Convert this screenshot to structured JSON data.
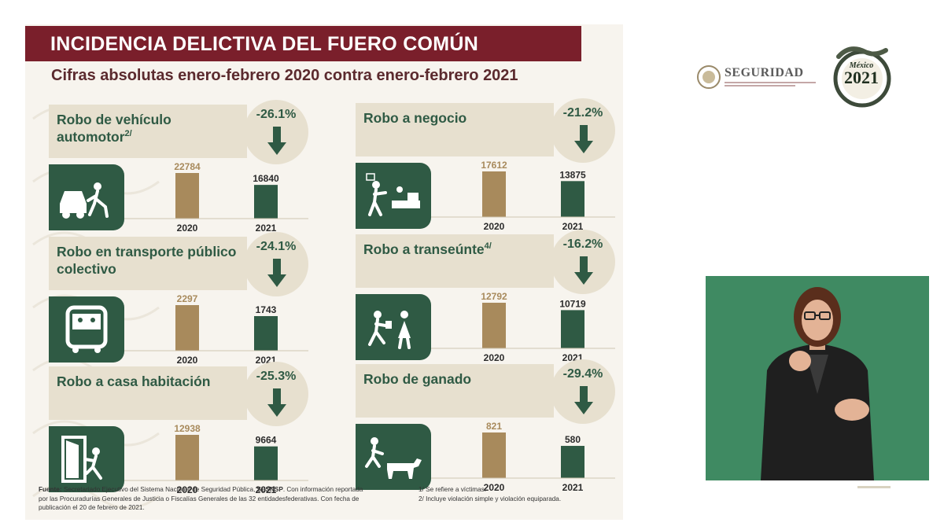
{
  "title": "INCIDENCIA DELICTIVA DEL FUERO COMÚN",
  "subtitle": "Cifras absolutas enero-febrero 2020 contra enero-febrero 2021",
  "colors": {
    "bar_2020": "#a88a5c",
    "bar_2021": "#2f5a44",
    "title_bar": "#7a1f2b",
    "banner": "#e7e0cf"
  },
  "panels": [
    {
      "title": "Robo de vehículo automotor",
      "note": "2/",
      "pct": "-26.1%",
      "icon": "car-robbery-icon",
      "year1": "2020",
      "year2": "2021"
    },
    {
      "title": "Robo a negocio",
      "note": "",
      "pct": "-21.2%",
      "icon": "store-robbery-icon",
      "year1": "2020",
      "year2": "2021"
    },
    {
      "title": "Robo en transporte público colectivo",
      "note": "",
      "pct": "-24.1%",
      "icon": "bus-robbery-icon",
      "year1": "2020",
      "year2": "2021"
    },
    {
      "title": "Robo a transeúnte",
      "note": "4/",
      "pct": "-16.2%",
      "icon": "pedestrian-robbery-icon",
      "year1": "2020",
      "year2": "2021"
    },
    {
      "title": "Robo a casa habitación",
      "note": "",
      "pct": "-25.3%",
      "icon": "house-robbery-icon",
      "year1": "2020",
      "year2": "2021"
    },
    {
      "title": "Robo de ganado",
      "note": "",
      "pct": "-29.4%",
      "icon": "cattle-robbery-icon",
      "year1": "2020",
      "year2": "2021"
    }
  ],
  "chart_data": [
    {
      "type": "bar",
      "title": "Robo de vehículo automotor",
      "categories": [
        "2020",
        "2021"
      ],
      "values": [
        22784,
        16840
      ],
      "value_labels": [
        "22784",
        "16840"
      ]
    },
    {
      "type": "bar",
      "title": "Robo a negocio",
      "categories": [
        "2020",
        "2021"
      ],
      "values": [
        17612,
        13875
      ],
      "value_labels": [
        "17612",
        "13875"
      ]
    },
    {
      "type": "bar",
      "title": "Robo en transporte público colectivo",
      "categories": [
        "2020",
        "2021"
      ],
      "values": [
        2297,
        1743
      ],
      "value_labels": [
        "2297",
        "1743"
      ]
    },
    {
      "type": "bar",
      "title": "Robo a transeúnte",
      "categories": [
        "2020",
        "2021"
      ],
      "values": [
        12792,
        10719
      ],
      "value_labels": [
        "12792",
        "10719"
      ]
    },
    {
      "type": "bar",
      "title": "Robo a casa habitación",
      "categories": [
        "2020",
        "2021"
      ],
      "values": [
        12938,
        9664
      ],
      "value_labels": [
        "12938",
        "9664"
      ]
    },
    {
      "type": "bar",
      "title": "Robo de ganado",
      "categories": [
        "2020",
        "2021"
      ],
      "values": [
        821,
        580
      ],
      "value_labels": [
        "821",
        "580"
      ]
    }
  ],
  "footer": {
    "source_label": "Fuente:",
    "source_text": " Secretariado Ejecutivo del Sistema Nacional de Seguridad Pública, ",
    "source_org": "SESNSP",
    "source_rest": ". Con información reportada por las Procuradurías Generales de Justicia o Fiscalías Generales de las 32 entidadesfederativas. Con fecha de publicación el 20 de febrero de 2021.",
    "note1": "1/ Se refiere a víctimas.",
    "note2": "2/ Incluye violación simple y violación equiparada."
  },
  "logo": {
    "name": "SEGURIDAD",
    "icon": "national-seal-icon"
  },
  "emblem": {
    "line1": "México",
    "year": "2021",
    "icon": "serpent-emblem-icon"
  }
}
